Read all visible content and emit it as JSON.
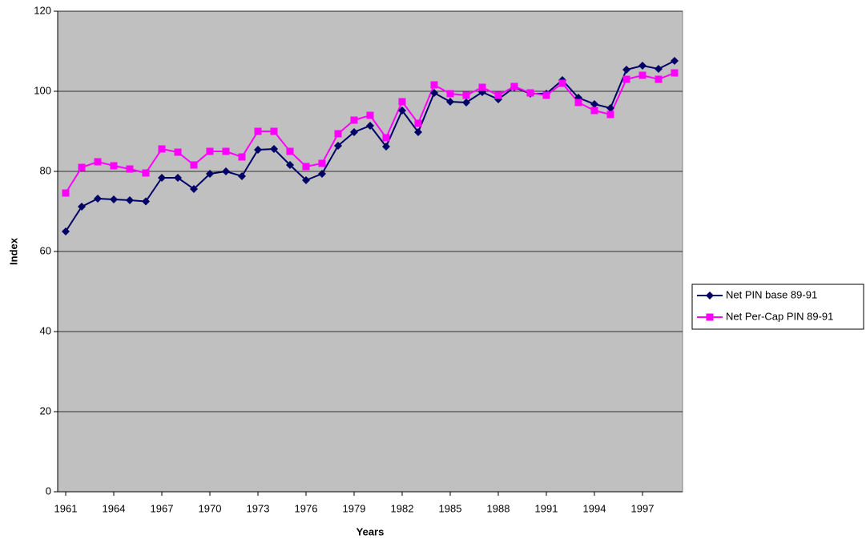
{
  "chart_data": {
    "type": "line",
    "x_label": "Years",
    "y_label": "Index",
    "x": [
      1961,
      1962,
      1963,
      1964,
      1965,
      1966,
      1967,
      1968,
      1969,
      1970,
      1971,
      1972,
      1973,
      1974,
      1975,
      1976,
      1977,
      1978,
      1979,
      1980,
      1981,
      1982,
      1983,
      1984,
      1985,
      1986,
      1987,
      1988,
      1989,
      1990,
      1991,
      1992,
      1993,
      1994,
      1995,
      1996,
      1997,
      1998,
      1999
    ],
    "series": [
      {
        "name": "Net PIN base 89-91",
        "color": "#000066",
        "marker": "diamond",
        "values": [
          65,
          71.2,
          73.2,
          73,
          72.8,
          72.5,
          78.4,
          78.4,
          75.6,
          79.4,
          80,
          78.8,
          85.4,
          85.6,
          81.6,
          77.8,
          79.4,
          86.4,
          89.8,
          91.4,
          86.2,
          95.2,
          89.8,
          99.6,
          97.4,
          97.2,
          99.8,
          98,
          101,
          99.4,
          99.4,
          102.8,
          98.4,
          96.8,
          95.8,
          105.4,
          106.4,
          105.6,
          107.6
        ]
      },
      {
        "name": "Net Per-Cap PIN 89-91",
        "color": "#ff00ff",
        "marker": "square",
        "values": [
          74.6,
          81,
          82.4,
          81.4,
          80.6,
          79.6,
          85.6,
          84.8,
          81.6,
          85,
          85,
          83.6,
          90,
          90,
          85,
          81.2,
          82,
          89.4,
          92.8,
          94,
          88.4,
          97.4,
          92,
          101.6,
          99.4,
          99,
          101,
          99,
          101.2,
          99.6,
          99,
          102,
          97.2,
          95.2,
          94.2,
          103,
          104,
          103,
          104.6
        ]
      }
    ],
    "xlim": [
      1960.5,
      1999.5
    ],
    "xticks": [
      1961,
      1964,
      1967,
      1970,
      1973,
      1976,
      1979,
      1982,
      1985,
      1988,
      1991,
      1994,
      1997
    ],
    "ylim": [
      0,
      120
    ],
    "yticks": [
      0,
      20,
      40,
      60,
      80,
      100,
      120
    ],
    "grid": true,
    "legend": "right",
    "plot_background": "#c0c0c0"
  }
}
